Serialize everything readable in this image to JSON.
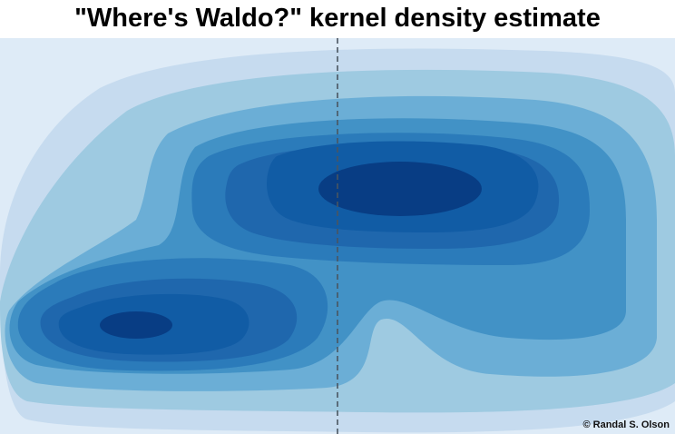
{
  "title": "\"Where's Waldo?\" kernel density estimate",
  "credit": "© Randal S. Olson",
  "chart_data": {
    "type": "kde-contour",
    "title": "\"Where's Waldo?\" kernel density estimate",
    "xlabel": "",
    "ylabel": "",
    "grid": false,
    "colormap": "Blues",
    "levels": 10,
    "reference_line": {
      "orientation": "vertical",
      "style": "dashed",
      "position_fraction": 0.5
    },
    "density_peaks": [
      {
        "label": "upper-right cluster",
        "x_fraction": 0.59,
        "y_fraction": 0.38,
        "relative_density": 1.0
      },
      {
        "label": "lower-left cluster",
        "x_fraction": 0.2,
        "y_fraction": 0.73,
        "relative_density": 0.92
      }
    ]
  }
}
